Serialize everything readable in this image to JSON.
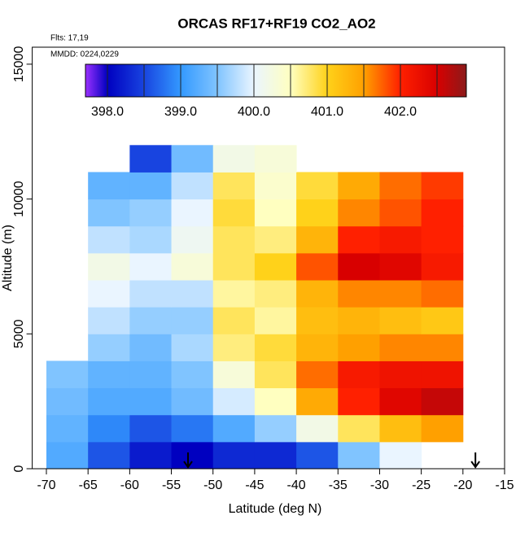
{
  "chart_data": {
    "type": "heatmap",
    "title": "ORCAS RF17+RF19 CO2_AO2",
    "annotations": [
      "Flts: 17,19",
      "MMDD: 0224,0229"
    ],
    "x_label": "Latitude (deg N)",
    "y_label": "Altitude (m)",
    "xlim": [
      -71.7,
      -15
    ],
    "ylim": [
      0,
      15630
    ],
    "xticks": [
      -70,
      -65,
      -60,
      -55,
      -50,
      -45,
      -40,
      -35,
      -30,
      -25,
      -20,
      -15
    ],
    "yticks": [
      0,
      5000,
      10000,
      15000
    ],
    "x_edges": [
      -70,
      -65,
      -60,
      -55,
      -50,
      -45,
      -40,
      -35,
      -30,
      -25,
      -20,
      -15
    ],
    "y_edges": [
      0,
      1000,
      2000,
      3000,
      4000,
      5000,
      6000,
      7000,
      8000,
      9000,
      10000,
      11000,
      12000
    ],
    "values": [
      [
        399.2,
        398.6,
        398.2,
        398.0,
        398.3,
        398.3,
        398.6,
        399.5,
        400.0,
        null,
        null
      ],
      [
        399.3,
        398.9,
        398.6,
        398.8,
        399.2,
        399.6,
        400.2,
        400.8,
        401.2,
        401.5,
        null
      ],
      [
        399.4,
        399.2,
        399.2,
        399.4,
        399.9,
        400.5,
        401.4,
        402.0,
        402.4,
        402.6,
        null
      ],
      [
        399.5,
        399.3,
        399.3,
        399.5,
        400.3,
        400.8,
        401.7,
        402.1,
        402.2,
        402.2,
        null
      ],
      [
        null,
        399.6,
        399.4,
        399.7,
        400.7,
        400.9,
        401.3,
        401.5,
        401.6,
        401.6,
        null
      ],
      [
        null,
        399.8,
        399.6,
        399.6,
        400.8,
        400.6,
        401.2,
        401.3,
        401.2,
        401.1,
        null
      ],
      [
        null,
        400.0,
        399.8,
        399.8,
        400.6,
        400.7,
        401.3,
        401.6,
        401.6,
        401.7,
        null
      ],
      [
        null,
        400.2,
        400.0,
        400.3,
        400.8,
        401.0,
        401.8,
        402.5,
        402.4,
        402.1,
        null
      ],
      [
        null,
        399.8,
        399.7,
        400.1,
        400.8,
        400.7,
        401.3,
        402.0,
        402.1,
        402.0,
        null
      ],
      [
        null,
        399.5,
        399.6,
        400.0,
        400.9,
        400.5,
        401.0,
        401.6,
        401.8,
        402.0,
        null
      ],
      [
        null,
        399.3,
        399.3,
        399.8,
        400.8,
        400.4,
        400.9,
        401.4,
        401.7,
        401.9,
        null
      ],
      [
        null,
        null,
        398.5,
        399.4,
        400.2,
        400.3,
        null,
        null,
        null,
        null,
        null
      ]
    ],
    "colorbar": {
      "lim": [
        397.7,
        402.9
      ],
      "ticks": [
        {
          "value": 398,
          "label": "398.0"
        },
        {
          "value": 399,
          "label": "399.0"
        },
        {
          "value": 400,
          "label": "400.0"
        },
        {
          "value": 401,
          "label": "401.0"
        },
        {
          "value": 402,
          "label": "402.0"
        }
      ],
      "stops": [
        {
          "value": 397.7,
          "color": "#9b30ff"
        },
        {
          "value": 398.0,
          "color": "#0000c0"
        },
        {
          "value": 398.5,
          "color": "#1844e0"
        },
        {
          "value": 399.0,
          "color": "#3399ff"
        },
        {
          "value": 399.5,
          "color": "#80c4ff"
        },
        {
          "value": 400.0,
          "color": "#eaf5ff"
        },
        {
          "value": 400.5,
          "color": "#ffffc0"
        },
        {
          "value": 401.0,
          "color": "#ffd21a"
        },
        {
          "value": 401.5,
          "color": "#ffa000"
        },
        {
          "value": 402.0,
          "color": "#ff2000"
        },
        {
          "value": 402.5,
          "color": "#d80000"
        },
        {
          "value": 402.9,
          "color": "#8b1a1a"
        }
      ]
    },
    "arrows": [
      -53,
      -18.5
    ]
  }
}
